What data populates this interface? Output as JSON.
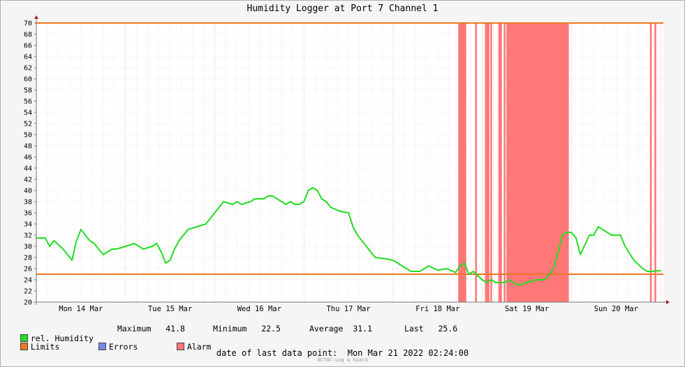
{
  "chart_data": {
    "type": "line",
    "title": "Humidity Logger at Port 7 Channel 1",
    "y_ticks": [
      20,
      22,
      24,
      26,
      28,
      30,
      32,
      34,
      36,
      38,
      40,
      42,
      44,
      46,
      48,
      50,
      52,
      54,
      56,
      58,
      60,
      62,
      64,
      66,
      68,
      70
    ],
    "ylim": [
      20,
      70
    ],
    "x_days": [
      "Mon 14 Mar",
      "Tue 15 Mar",
      "Wed 16 Mar",
      "Thu 17 Mar",
      "Fri 18 Mar",
      "Sat 19 Mar",
      "Sun 20 Mar"
    ],
    "x_range_days": [
      0,
      7.03
    ],
    "grid": true,
    "limits": [
      25,
      70
    ],
    "alarm_intervals_days": [
      [
        4.73,
        4.82
      ],
      [
        4.92,
        4.94
      ],
      [
        5.03,
        5.08
      ],
      [
        5.09,
        5.11
      ],
      [
        5.18,
        5.22
      ],
      [
        5.24,
        5.26
      ],
      [
        5.27,
        5.97
      ],
      [
        6.88,
        6.9
      ],
      [
        6.93,
        6.95
      ]
    ],
    "series": [
      {
        "name": "rel. Humidity",
        "x_days": [
          0,
          0.1,
          0.15,
          0.2,
          0.3,
          0.4,
          0.45,
          0.5,
          0.55,
          0.6,
          0.65,
          0.75,
          0.8,
          0.85,
          0.9,
          1.0,
          1.1,
          1.2,
          1.3,
          1.35,
          1.4,
          1.45,
          1.5,
          1.55,
          1.6,
          1.7,
          1.8,
          1.9,
          2.0,
          2.1,
          2.2,
          2.25,
          2.3,
          2.4,
          2.45,
          2.5,
          2.55,
          2.6,
          2.65,
          2.7,
          2.75,
          2.8,
          2.85,
          2.9,
          2.95,
          3.0,
          3.05,
          3.1,
          3.15,
          3.2,
          3.25,
          3.3,
          3.4,
          3.5,
          3.55,
          3.6,
          3.7,
          3.8,
          3.9,
          4.0,
          4.1,
          4.2,
          4.3,
          4.4,
          4.5,
          4.6,
          4.7,
          4.75,
          4.8,
          4.85,
          4.9,
          5.0,
          5.05,
          5.1,
          5.15,
          5.2,
          5.25,
          5.3,
          5.4,
          5.5,
          5.6,
          5.7,
          5.8,
          5.9,
          5.95,
          6.0,
          6.05,
          6.1,
          6.2,
          6.25,
          6.3,
          6.4,
          6.45,
          6.5,
          6.55,
          6.6,
          6.7,
          6.8,
          6.85,
          6.9,
          6.95,
          7.0
        ],
        "values": [
          31.5,
          31.5,
          30,
          31,
          29.5,
          27.5,
          31,
          33,
          32,
          31,
          30.5,
          28.5,
          29,
          29.5,
          29.5,
          30,
          30.5,
          29.5,
          30,
          30.5,
          29,
          27,
          27.5,
          29.5,
          31,
          33,
          33.5,
          34,
          36,
          38,
          37.5,
          38,
          37.5,
          38,
          38.5,
          38.5,
          38.5,
          39,
          39,
          38.5,
          38,
          37.5,
          38,
          37.5,
          37.5,
          38,
          40,
          40.5,
          40,
          38.5,
          38,
          37,
          36.3,
          36,
          33.5,
          32,
          30,
          28,
          27.8,
          27.5,
          26.5,
          25.5,
          25.5,
          26.5,
          25.7,
          26,
          25.3,
          26.5,
          27,
          25,
          25.5,
          24,
          23.5,
          24,
          23.5,
          23.5,
          23.5,
          24,
          23,
          23.5,
          24,
          24,
          26,
          32,
          32.5,
          32.5,
          31.5,
          28.5,
          32,
          32,
          33.5,
          32.5,
          32,
          32,
          32,
          30,
          27.5,
          26,
          25.5,
          25.5,
          25.6,
          25.6
        ]
      }
    ]
  },
  "legend": {
    "series_label": "rel. Humidity",
    "maximum_label": "Maximum",
    "maximum_value": "41.8",
    "minimum_label": "Minimum",
    "minimum_value": "22.5",
    "average_label": "Average",
    "average_value": "31.1",
    "last_label": "Last",
    "last_value": "25.6",
    "limits_label": "Limits",
    "errors_label": "Errors",
    "alarm_label": "Alarm"
  },
  "footer": {
    "last_point_label": "date of last data point:",
    "last_point_value": "Mon Mar 21 2022 02:24:00",
    "credit": "OCTA© Log & Guard"
  },
  "colors": {
    "humidity": "#22dd22",
    "limits": "#ee7722",
    "errors": "#7788ee",
    "alarm": "#ff7777"
  }
}
